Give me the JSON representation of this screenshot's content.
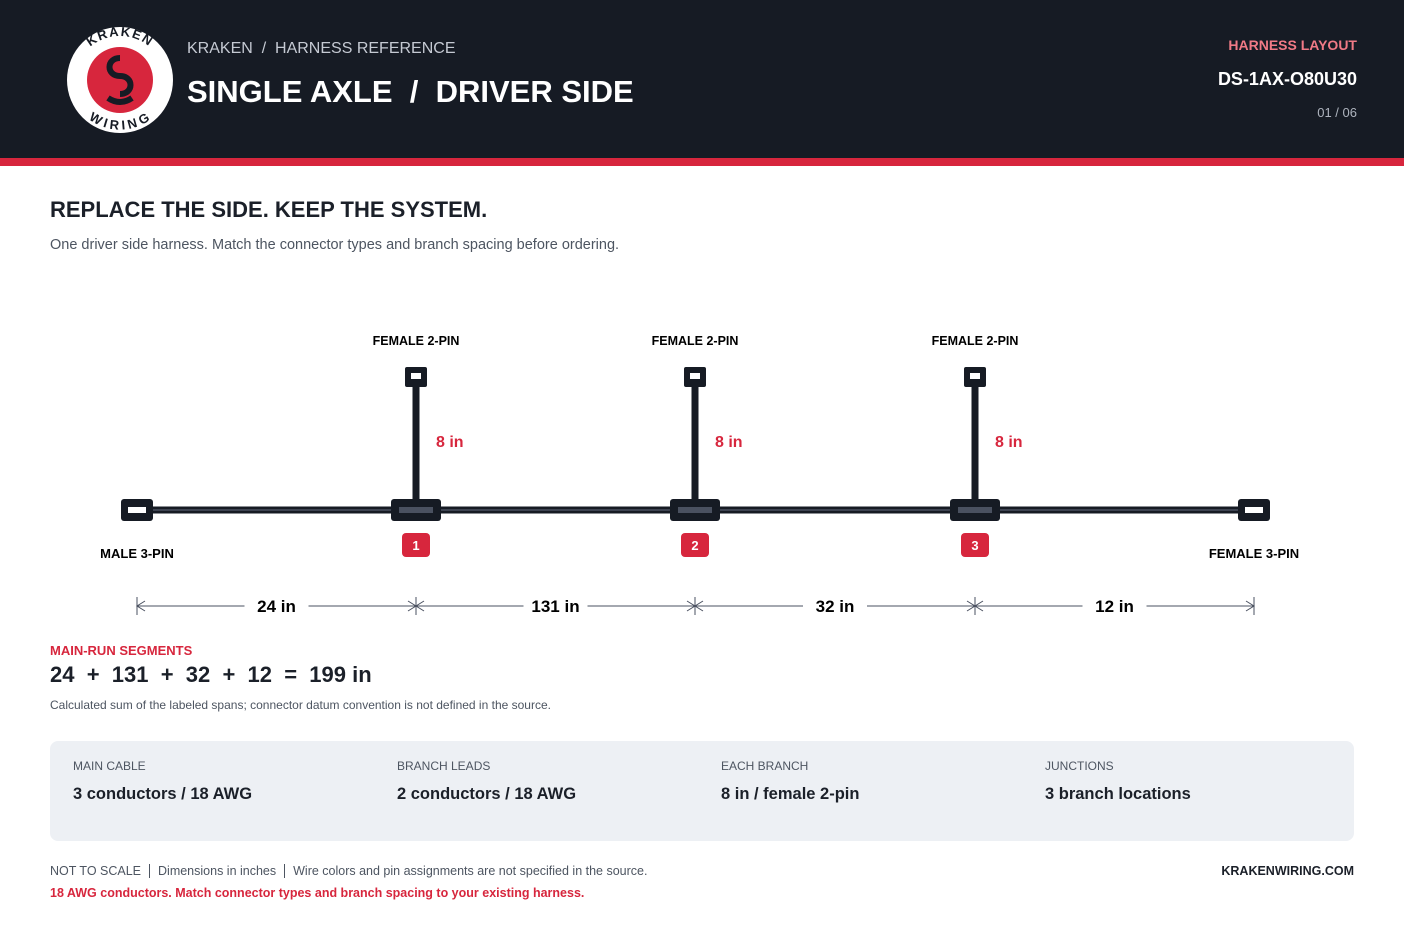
{
  "logo": {
    "top": "KRAKEN",
    "bottom": "WIRING"
  },
  "header": {
    "breadcrumb": "KRAKEN  /  HARNESS REFERENCE",
    "title": "SINGLE AXLE  /  DRIVER SIDE",
    "kicker": "HARNESS LAYOUT",
    "code": "DS-1AX-O80U30",
    "page": "01 / 06"
  },
  "section": {
    "heading": "REPLACE THE SIDE. KEEP THE SYSTEM.",
    "intro": "One driver side harness. Match the connector types and branch spacing before ordering."
  },
  "diagram": {
    "ends": [
      "MALE 3-PIN",
      "FEMALE 3-PIN"
    ],
    "branches": [
      {
        "connector": "FEMALE 2-PIN",
        "length": "8 in",
        "marker": "1"
      },
      {
        "connector": "FEMALE 2-PIN",
        "length": "8 in",
        "marker": "2"
      },
      {
        "connector": "FEMALE 2-PIN",
        "length": "8 in",
        "marker": "3"
      }
    ],
    "spans": [
      "24 in",
      "131 in",
      "32 in",
      "12 in"
    ]
  },
  "summary": {
    "label": "MAIN-RUN SEGMENTS",
    "equation": "24  +  131  +  32  +  12  =  199 in",
    "note": "Calculated sum of the labeled spans; connector datum convention is not defined in the source."
  },
  "specs": [
    {
      "label": "MAIN CABLE",
      "value": "3 conductors / 18 AWG"
    },
    {
      "label": "BRANCH LEADS",
      "value": "2 conductors / 18 AWG"
    },
    {
      "label": "EACH BRANCH",
      "value": "8 in / female 2-pin"
    },
    {
      "label": "JUNCTIONS",
      "value": "3 branch locations"
    }
  ],
  "footer": {
    "notes": [
      "NOT TO SCALE",
      "Dimensions in inches",
      "Wire colors and pin assignments are not specified in the source."
    ],
    "warning": "18 AWG conductors. Match connector types and branch spacing to your existing harness.",
    "site": "KRAKENWIRING.COM"
  }
}
